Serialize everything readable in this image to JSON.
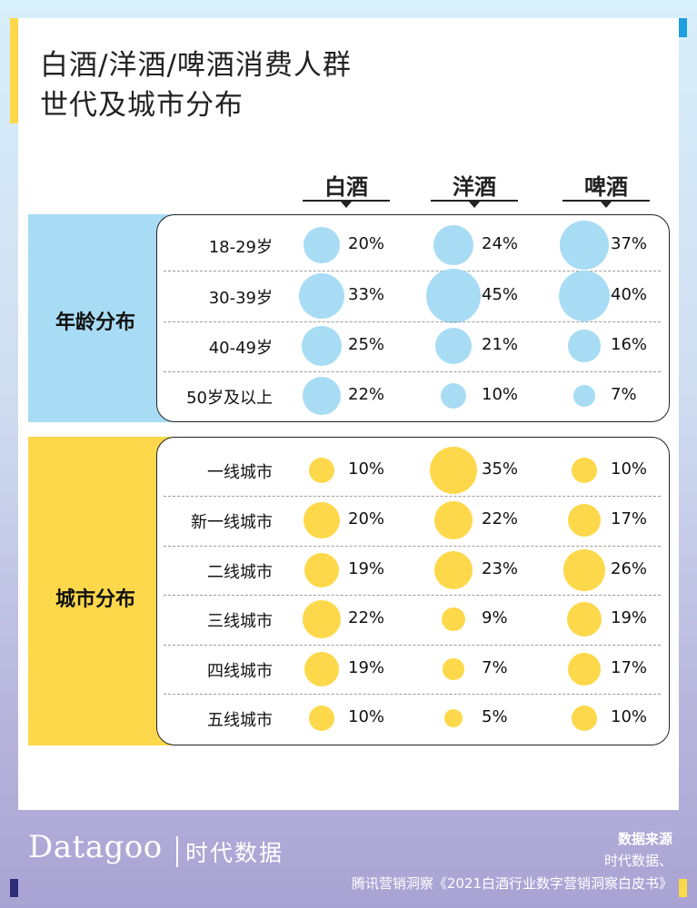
{
  "title_line1": "白酒/洋酒/啤酒消费人群",
  "title_line2": "世代及城市分布",
  "columns": [
    "白酒",
    "洋酒",
    "啤酒"
  ],
  "sections": {
    "age": "年龄分布",
    "city": "城市分布"
  },
  "colors": {
    "age": "#a8dcf4",
    "city": "#fdd84a"
  },
  "chart_data": {
    "type": "table",
    "title": "白酒/洋酒/啤酒消费人群世代及城市分布",
    "series": [
      {
        "name": "白酒"
      },
      {
        "name": "洋酒"
      },
      {
        "name": "啤酒"
      }
    ],
    "age_distribution": {
      "categories": [
        "18-29岁",
        "30-39岁",
        "40-49岁",
        "50岁及以上"
      ],
      "values": [
        [
          20,
          24,
          37
        ],
        [
          33,
          45,
          40
        ],
        [
          25,
          21,
          16
        ],
        [
          22,
          10,
          7
        ]
      ],
      "labels": [
        [
          "20%",
          "24%",
          "37%"
        ],
        [
          "33%",
          "45%",
          "40%"
        ],
        [
          "25%",
          "21%",
          "16%"
        ],
        [
          "22%",
          "10%",
          "7%"
        ]
      ]
    },
    "city_distribution": {
      "categories": [
        "一线城市",
        "新一线城市",
        "二线城市",
        "三线城市",
        "四线城市",
        "五线城市"
      ],
      "values": [
        [
          10,
          35,
          10
        ],
        [
          20,
          22,
          17
        ],
        [
          19,
          23,
          26
        ],
        [
          22,
          9,
          19
        ],
        [
          19,
          7,
          17
        ],
        [
          10,
          5,
          10
        ]
      ],
      "labels": [
        [
          "10%",
          "35%",
          "10%"
        ],
        [
          "20%",
          "22%",
          "17%"
        ],
        [
          "19%",
          "23%",
          "26%"
        ],
        [
          "22%",
          "9%",
          "19%"
        ],
        [
          "19%",
          "7%",
          "17%"
        ],
        [
          "10%",
          "5%",
          "10%"
        ]
      ]
    }
  },
  "footer": {
    "brand": "Datagoo",
    "brand_cn": "时代数据",
    "source_heading": "数据来源",
    "source_line1": "时代数据、",
    "source_line2": "腾讯营销洞察《2021白酒行业数字营销洞察白皮书》"
  }
}
